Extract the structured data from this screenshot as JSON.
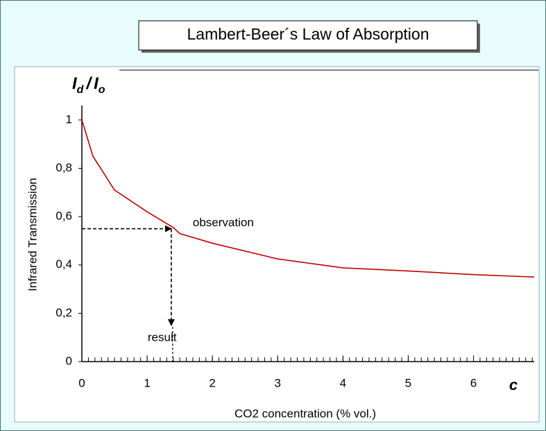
{
  "chart_data": {
    "type": "line",
    "title": "Lambert-Beer´s Law of Absorption",
    "xlabel": "CO2 concentration (% vol.)",
    "ylabel": "Infrared Transmission",
    "x_symbol": "c",
    "y_symbol": {
      "base1": "I",
      "sub1": "d",
      "sep": "/",
      "base2": "I",
      "sub2": "o"
    },
    "x": [
      0,
      0.17,
      0.5,
      1.0,
      1.4,
      1.5,
      2.0,
      3.0,
      4.0,
      5.0,
      6.0,
      6.93
    ],
    "series": [
      {
        "name": "observation",
        "color": "#c00000",
        "values": [
          1.0,
          0.85,
          0.71,
          0.62,
          0.555,
          0.53,
          0.49,
          0.425,
          0.388,
          0.375,
          0.36,
          0.35
        ]
      }
    ],
    "annotations": [
      {
        "text": "observation",
        "y": 0.55,
        "color": "#e00000"
      },
      {
        "text": "result",
        "x": 1.37,
        "color": "#e00000"
      }
    ],
    "xlim": [
      0,
      6.93
    ],
    "ylim": [
      0,
      1.06
    ],
    "xticks": [
      0,
      1,
      2,
      3,
      4,
      5,
      6
    ],
    "yticks": [
      0,
      {
        "value": 0.2,
        "label": "0,2"
      },
      {
        "value": 0.4,
        "label": "0,4"
      },
      {
        "value": 0.6,
        "label": "0,6"
      },
      {
        "value": 0.8,
        "label": "0,8"
      },
      1
    ]
  }
}
